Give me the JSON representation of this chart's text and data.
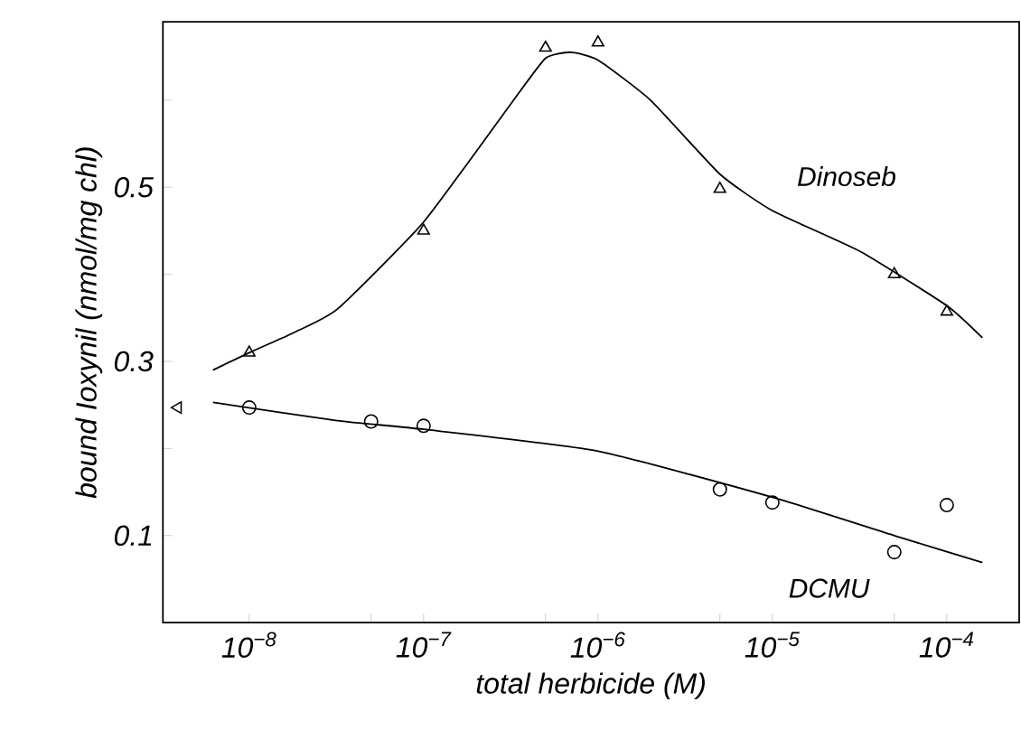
{
  "chart_data": {
    "type": "scatter",
    "xlabel": "total herbicide (M)",
    "ylabel": "bound Ioxynil (nmol/mg chl)",
    "log": "x",
    "xlim": [
      3.2e-09,
      0.00026
    ],
    "xticks": [
      {
        "value": 1e-08,
        "label": "10$^{−8}$"
      },
      {
        "value": 5e-08,
        "label": null
      },
      {
        "value": 1e-07,
        "label": "10$^{−7}$"
      },
      {
        "value": 5e-07,
        "label": null
      },
      {
        "value": 1e-06,
        "label": "10$^{−6}$"
      },
      {
        "value": 5e-06,
        "label": null
      },
      {
        "value": 1e-05,
        "label": "10$^{−5}$"
      },
      {
        "value": 5e-05,
        "label": null
      },
      {
        "value": 0.0001,
        "label": "10$^{−4}$"
      }
    ],
    "ylim": [
      0,
      0.69
    ],
    "yticks": [
      0.1,
      {
        "value": 0.2,
        "label": null
      },
      0.3,
      {
        "value": 0.4,
        "label": null
      },
      0.5,
      {
        "value": 0.6,
        "label": null
      }
    ],
    "grid": false,
    "series": [
      {
        "name": "Dinoseb",
        "marker": "triangle",
        "color": "#000000",
        "x": [
          1e-08,
          1e-07,
          5e-07,
          1e-06,
          5e-06,
          5e-05,
          0.0001
        ],
        "values": [
          0.31,
          0.45,
          0.66,
          0.666,
          0.498,
          0.4,
          0.357
        ]
      },
      {
        "type": "line",
        "marker": "none",
        "line_style": "solid",
        "color": "#000000",
        "x": [
          6.2e-09,
          1e-08,
          1.8e-08,
          3.2e-08,
          1e-07,
          3.2e-07,
          5e-07,
          7e-07,
          1e-06,
          2e-06,
          5e-06,
          1e-05,
          3.2e-05,
          0.0001,
          0.00016
        ],
        "values": [
          0.29,
          0.31,
          0.333,
          0.36,
          0.46,
          0.597,
          0.648,
          0.655,
          0.646,
          0.6,
          0.515,
          0.473,
          0.426,
          0.364,
          0.327
        ]
      },
      {
        "name": "DCMU",
        "marker": "circle",
        "color": "#000000",
        "x": [
          1e-08,
          5e-08,
          1e-07,
          5e-06,
          1e-05,
          5e-05,
          0.0001
        ],
        "values": [
          0.247,
          0.231,
          0.226,
          0.153,
          0.138,
          0.081,
          0.135
        ]
      },
      {
        "type": "line",
        "marker": "none",
        "line_style": "solid",
        "color": "#000000",
        "x": [
          6.2e-09,
          3.2e-08,
          1e-07,
          1e-06,
          1e-05,
          5e-05,
          0.00016
        ],
        "values": [
          0.253,
          0.232,
          0.222,
          0.197,
          0.144,
          0.1,
          0.069
        ]
      },
      {
        "marker": "triangle",
        "color": "#000000",
        "x": [
          3.9e-09
        ],
        "values": [
          0.247
        ]
      }
    ]
  }
}
